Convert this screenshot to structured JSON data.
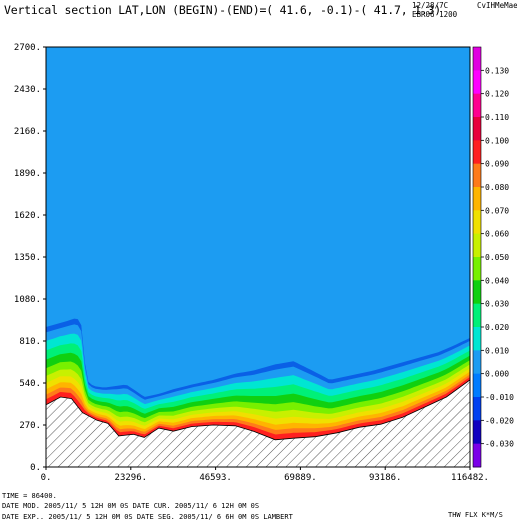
{
  "header": {
    "title": "Vertical section LAT,LON (BEGIN)-(END)=( 41.6, -0.1)-( 41.7,  1.3)",
    "date": "12/28/7C",
    "model": "EBR06 1200",
    "right": "CvIHMeMae"
  },
  "footer": {
    "time_line": "TIME =     86400.",
    "mod_line": "DATE MOD. 2005/11/ 5  12H 0M 0S    DATE CUR. 2005/11/ 6  12H 0M 0S",
    "exp_line": "DATE EXP.. 2005/11/ 5  12H 0M 0S    DATE SEG. 2005/11/ 6   6H 0M 0S    LAMBERT",
    "variable": "THW FLX K*M/S"
  },
  "colors": {
    "background_field": "#1c9cf2",
    "terrain_hatch": "#555555"
  },
  "chart_data": {
    "type": "heatmap",
    "title": "Vertical section LAT,LON (BEGIN)-(END)=( 41.6, -0.1)-( 41.7,  1.3)",
    "x_ticks": [
      "0.",
      "23296.",
      "46593.",
      "69889.",
      "93186.",
      "116482."
    ],
    "y_ticks": [
      "0.",
      "270.",
      "540.",
      "810.",
      "1080.",
      "1350.",
      "1620.",
      "1890.",
      "2160.",
      "2430.",
      "2700."
    ],
    "xlim": [
      0,
      116482
    ],
    "ylim": [
      0,
      2700
    ],
    "colorbar": {
      "labels": [
        "0.130",
        "0.120",
        "0.110",
        "0.100",
        "0.090",
        "0.080",
        "0.070",
        "0.060",
        "0.050",
        "0.040",
        "0.030",
        "0.020",
        "0.010",
        "0.000",
        "-0.010",
        "-0.020",
        "-0.030"
      ],
      "colors": [
        "#e000e0",
        "#ff00ff",
        "#ff0090",
        "#e8003c",
        "#ff2020",
        "#ff7a1a",
        "#ffb400",
        "#f0e000",
        "#c8f000",
        "#78f000",
        "#10d010",
        "#00f078",
        "#00e6d2",
        "#1c9cf2",
        "#007cff",
        "#0040f0",
        "#1000c0",
        "#7a00e8"
      ]
    },
    "terrain": {
      "x": [
        0,
        4000,
        7000,
        10000,
        14000,
        17000,
        20000,
        24000,
        27000,
        31000,
        35000,
        40000,
        46000,
        52000,
        57000,
        63000,
        68000,
        74000,
        80000,
        86000,
        92000,
        98000,
        104000,
        110000,
        116482
      ],
      "y": [
        400,
        450,
        440,
        350,
        300,
        280,
        200,
        210,
        190,
        250,
        230,
        260,
        270,
        265,
        230,
        175,
        185,
        195,
        220,
        255,
        275,
        320,
        385,
        450,
        560
      ]
    },
    "top_boundary": {
      "x": [
        0,
        3000,
        6000,
        8500,
        10000,
        11000,
        13000,
        16000,
        19000,
        22000,
        24000,
        27000,
        31000,
        35000,
        40000,
        46000,
        52000,
        57000,
        63000,
        68000,
        74000,
        78000,
        84000,
        90000,
        96000,
        102000,
        108000,
        112000,
        116482
      ],
      "y": [
        900,
        920,
        940,
        960,
        900,
        560,
        520,
        510,
        520,
        530,
        500,
        450,
        470,
        500,
        530,
        560,
        600,
        620,
        660,
        680,
        610,
        560,
        590,
        620,
        660,
        700,
        740,
        780,
        830
      ]
    }
  }
}
